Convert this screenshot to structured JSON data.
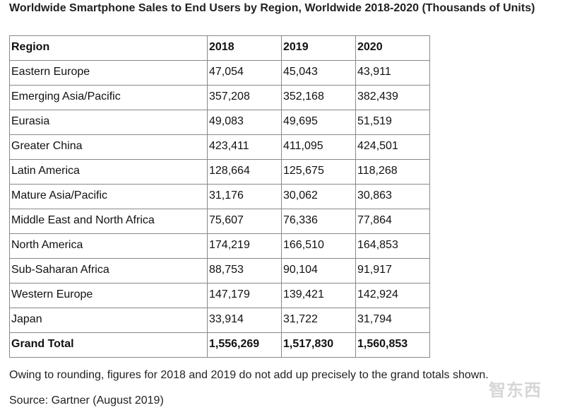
{
  "title": "Worldwide Smartphone Sales to End Users by Region, Worldwide 2018-2020 (Thousands of Units)",
  "table": {
    "headers": [
      "Region",
      "2018",
      "2019",
      "2020"
    ],
    "rows": [
      [
        "Eastern Europe",
        "47,054",
        "45,043",
        "43,911"
      ],
      [
        "Emerging Asia/Pacific",
        "357,208",
        "352,168",
        "382,439"
      ],
      [
        "Eurasia",
        "49,083",
        "49,695",
        "51,519"
      ],
      [
        "Greater China",
        "423,411",
        "411,095",
        "424,501"
      ],
      [
        "Latin America",
        "128,664",
        "125,675",
        "118,268"
      ],
      [
        "Mature Asia/Pacific",
        "31,176",
        "30,062",
        "30,863"
      ],
      [
        "Middle East and North Africa",
        "75,607",
        "76,336",
        "77,864"
      ],
      [
        "North America",
        "174,219",
        "166,510",
        "164,853"
      ],
      [
        "Sub-Saharan Africa",
        "88,753",
        "90,104",
        "91,917"
      ],
      [
        "Western Europe",
        "147,179",
        "139,421",
        "142,924"
      ],
      [
        "Japan",
        "33,914",
        "31,722",
        "31,794"
      ]
    ],
    "total": [
      "Grand Total",
      "1,556,269",
      "1,517,830",
      "1,560,853"
    ]
  },
  "footnote": "Owing to rounding, figures for 2018 and 2019 do not add up precisely to the grand totals shown.",
  "source": "Source: Gartner (August 2019)",
  "watermark": "智东西"
}
